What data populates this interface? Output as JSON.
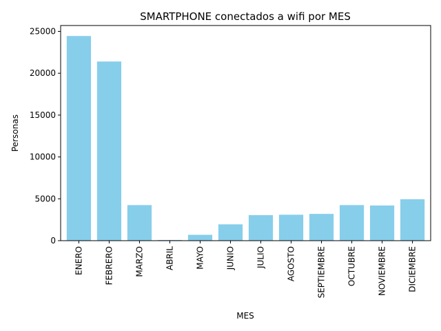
{
  "chart_data": {
    "type": "bar",
    "title": "SMARTPHONE conectados a wifi por MES",
    "xlabel": "MES",
    "ylabel": "Personas",
    "categories": [
      "ENERO",
      "FEBRERO",
      "MARZO",
      "ABRIL",
      "MAYO",
      "JUNIO",
      "JULIO",
      "AGOSTO",
      "SEPTIEMBRE",
      "OCTUBRE",
      "NOVIEMBRE",
      "DICIEMBRE"
    ],
    "values": [
      24450,
      21400,
      4250,
      80,
      700,
      1950,
      3050,
      3100,
      3200,
      4250,
      4200,
      4950
    ],
    "ylim": [
      0,
      25700
    ],
    "yticks": [
      0,
      5000,
      10000,
      15000,
      20000,
      25000
    ],
    "bar_color": "#87ceeb",
    "grid": false,
    "legend": "none"
  }
}
